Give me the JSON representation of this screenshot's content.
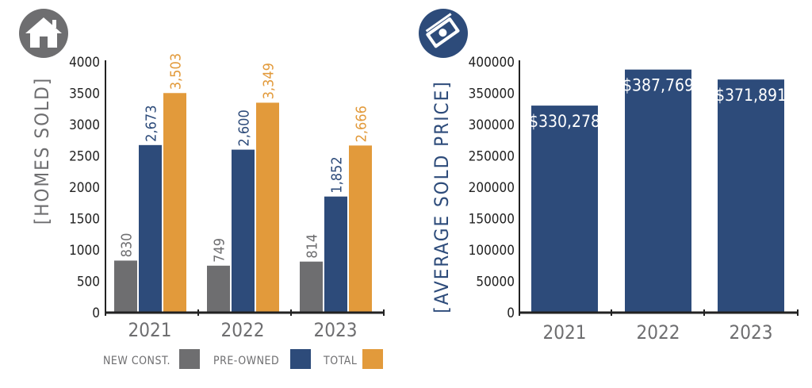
{
  "colors": {
    "new_const": "#6e6e70",
    "pre_owned": "#2d4b7a",
    "total": "#e29a3b",
    "axis_text_left": "#6e6e70",
    "axis_text_right": "#2d4b7a",
    "axis_line": "#222222",
    "icon_left_bg": "#6e6e70",
    "icon_right_bg": "#2d4b7a"
  },
  "icons": {
    "left": "house-icon",
    "right": "money-icon"
  },
  "chart_data": [
    {
      "type": "bar",
      "ylabel": "[HOMES SOLD]",
      "ylim": [
        0,
        4000
      ],
      "yticks": [
        0,
        500,
        1000,
        1500,
        2000,
        2500,
        3000,
        3500,
        4000
      ],
      "categories": [
        "2021",
        "2022",
        "2023"
      ],
      "series": [
        {
          "name": "NEW CONST.",
          "values": [
            830,
            749,
            814
          ],
          "labels": [
            "830",
            "749",
            "814"
          ],
          "color": "#6e6e70"
        },
        {
          "name": "PRE-OWNED",
          "values": [
            2673,
            2600,
            1852
          ],
          "labels": [
            "2,673",
            "2,600",
            "1,852"
          ],
          "color": "#2d4b7a"
        },
        {
          "name": "TOTAL",
          "values": [
            3503,
            3349,
            2666
          ],
          "labels": [
            "3,503",
            "3,349",
            "2,666"
          ],
          "color": "#e29a3b"
        }
      ],
      "legend": "bottom",
      "grid": false
    },
    {
      "type": "bar",
      "ylabel": "[AVERAGE SOLD PRICE]",
      "ylim": [
        0,
        400000
      ],
      "yticks": [
        0,
        50000,
        100000,
        150000,
        200000,
        250000,
        300000,
        350000,
        400000
      ],
      "categories": [
        "2021",
        "2022",
        "2023"
      ],
      "values": [
        330278,
        387769,
        371891
      ],
      "labels": [
        "$330,278",
        "$387,769",
        "$371,891"
      ],
      "color": "#2d4b7a",
      "grid": false
    }
  ]
}
